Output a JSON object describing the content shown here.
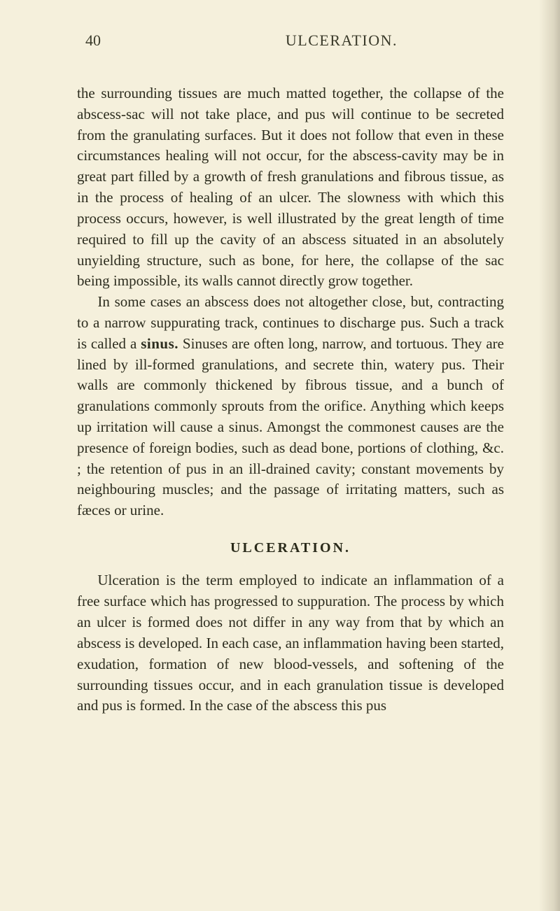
{
  "page": {
    "number": "40",
    "running_title": "ULCERATION.",
    "background_color": "#f5f0dc",
    "text_color": "#2c2c1e",
    "heading_color": "#2a2a1a",
    "body_fontsize": 21,
    "header_fontsize": 22,
    "heading_fontsize": 20,
    "line_height": 1.42
  },
  "paragraphs": {
    "p1": "the surrounding tissues are much matted together, the collapse of the abscess-sac will not take place, and pus will continue to be secreted from the granulating surfaces. But it does not follow that even in these circumstances healing will not occur, for the abscess-cavity may be in great part filled by a growth of fresh granulations and fibrous tissue, as in the process of healing of an ulcer. The slowness with which this process occurs, however, is well illustrated by the great length of time required to fill up the cavity of an abscess situated in an absolutely unyielding structure, such as bone, for here, the collapse of the sac being impossible, its walls cannot directly grow together.",
    "p2_pre": "In some cases an abscess does not altogether close, but, contracting to a narrow suppurating track, continues to discharge pus. Such a track is called a ",
    "p2_bold": "sinus.",
    "p2_post": " Sinuses are often long, narrow, and tortuous. They are lined by ill-formed granulations, and secrete thin, watery pus. Their walls are commonly thickened by fibrous tissue, and a bunch of granulations commonly sprouts from the orifice. Anything which keeps up irritation will cause a sinus. Amongst the commonest causes are the presence of foreign bodies, such as dead bone, portions of clothing, &c. ; the retention of pus in an ill-drained cavity; constant movements by neighbouring muscles; and the passage of irritating matters, such as fæces or urine.",
    "heading": "ULCERATION.",
    "p3": "Ulceration is the term employed to indicate an inflammation of a free surface which has progressed to suppuration. The process by which an ulcer is formed does not differ in any way from that by which an abscess is developed. In each case, an inflammation having been started, exudation, formation of new blood-vessels, and softening of the surrounding tissues occur, and in each granulation tissue is developed and pus is formed. In the case of the abscess this pus"
  }
}
